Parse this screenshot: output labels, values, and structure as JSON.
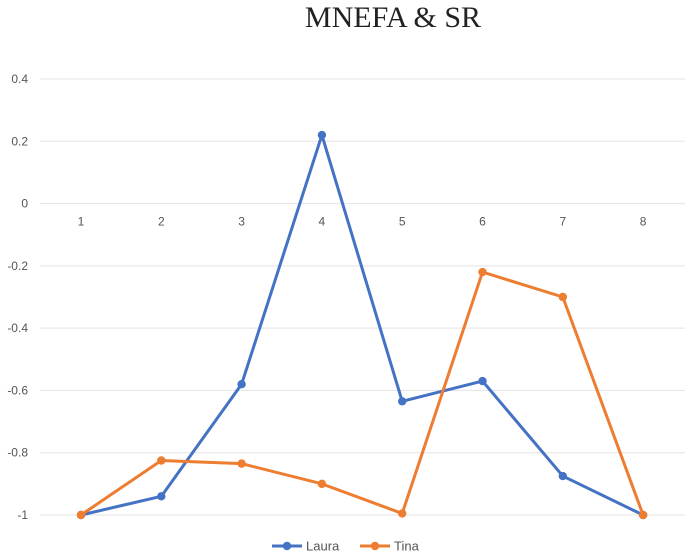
{
  "chart_data": {
    "type": "line",
    "title": "MNEFA & SR",
    "xlabel": "",
    "ylabel": "",
    "categories": [
      "1",
      "2",
      "3",
      "4",
      "5",
      "6",
      "7",
      "8"
    ],
    "ylim": [
      -1,
      0.4
    ],
    "yticks": [
      "0.4",
      "0.2",
      "0",
      "-0.2",
      "-0.4",
      "-0.6",
      "-0.8",
      "-1"
    ],
    "grid": true,
    "legend_position": "bottom",
    "series": [
      {
        "name": "Laura",
        "color": "#4472C4",
        "values": [
          -1.0,
          -0.94,
          -0.58,
          0.22,
          -0.635,
          -0.57,
          -0.875,
          -1.0
        ]
      },
      {
        "name": "Tina",
        "color": "#ED7D31",
        "values": [
          -1.0,
          -0.825,
          -0.835,
          -0.9,
          -0.995,
          -0.22,
          -0.3,
          -1.0
        ]
      }
    ]
  }
}
